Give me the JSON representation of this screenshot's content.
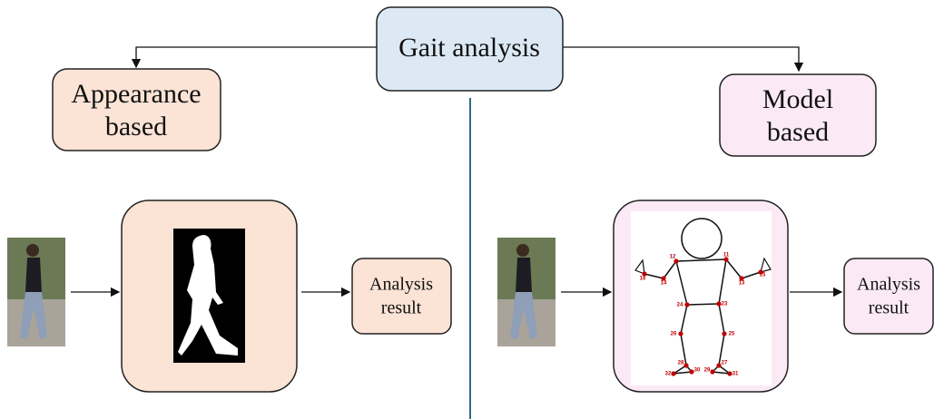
{
  "root": {
    "label": "Gait analysis"
  },
  "branches": [
    {
      "lines": [
        "Appearance",
        "based"
      ],
      "result": [
        "Analysis",
        "result"
      ]
    },
    {
      "lines": [
        "Model",
        "based"
      ],
      "result": [
        "Analysis",
        "result"
      ]
    }
  ],
  "keypoints": [
    "12",
    "11",
    "16",
    "14",
    "13",
    "15",
    "24",
    "23",
    "26",
    "25",
    "28",
    "27",
    "32",
    "30",
    "29",
    "31"
  ]
}
